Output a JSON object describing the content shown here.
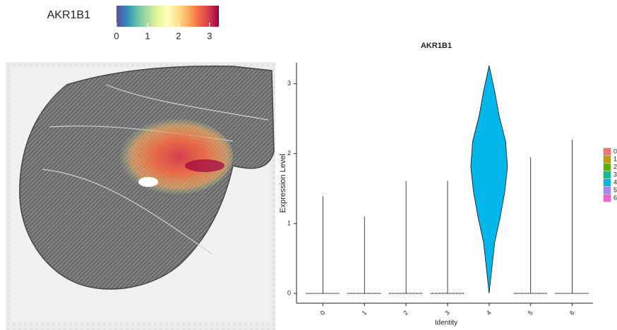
{
  "chart_data": [
    {
      "type": "spatial",
      "legend_title": "AKR1B1",
      "colorbar_lim": [
        0,
        3.3
      ],
      "colorbar_ticks": [
        0,
        1,
        2,
        3
      ],
      "colors": [
        "#5E4FA2",
        "#3288BD",
        "#66C2A5",
        "#ABDDA4",
        "#E6F598",
        "#FFFFBF",
        "#FEE08B",
        "#FDAE61",
        "#F46D43",
        "#D53E4F",
        "#9E0142"
      ]
    },
    {
      "type": "violin",
      "title": "AKR1B1",
      "x_label": "Identity",
      "y_label": "Expression Level",
      "categories": [
        "0",
        "1",
        "2",
        "3",
        "4",
        "5",
        "6"
      ],
      "values": [
        1.39,
        1.1,
        1.61,
        1.61,
        3.26,
        1.95,
        2.2
      ],
      "colors": [
        "#F8766D",
        "#C49A00",
        "#53B400",
        "#00C094",
        "#00B6EB",
        "#A58AFF",
        "#FB61D7"
      ],
      "ylim": [
        -0.14,
        3.3
      ],
      "yticks": [
        0,
        1,
        2,
        3
      ]
    }
  ]
}
